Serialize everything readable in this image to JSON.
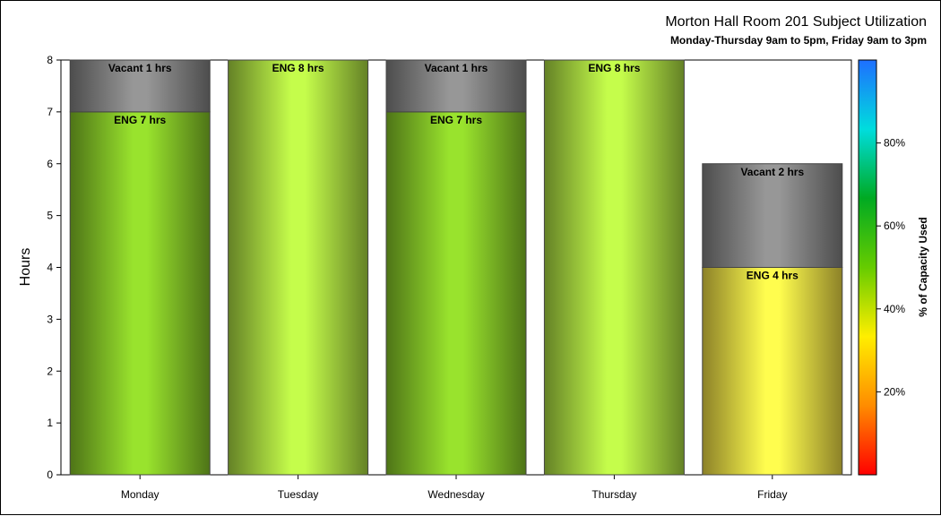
{
  "chart_data": {
    "type": "bar",
    "stacked": true,
    "title": "Morton Hall Room 201 Subject Utilization",
    "subtitle": "Monday-Thursday 9am to 5pm, Friday 9am to 3pm",
    "ylabel": "Hours",
    "ylim": [
      0,
      8
    ],
    "yticks": [
      "0",
      "1",
      "2",
      "3",
      "4",
      "5",
      "6",
      "7",
      "8"
    ],
    "categories": [
      "Monday",
      "Tuesday",
      "Wednesday",
      "Thursday",
      "Friday"
    ],
    "bars": [
      {
        "category": "Monday",
        "segments": [
          {
            "name": "ENG",
            "hours": 7,
            "label": "ENG 7 hrs",
            "capacity_pct": 87.5,
            "color": "#8ed22a"
          },
          {
            "name": "Vacant",
            "hours": 1,
            "label": "Vacant 1 hrs",
            "color": "#8c8c8c"
          }
        ]
      },
      {
        "category": "Tuesday",
        "segments": [
          {
            "name": "ENG",
            "hours": 8,
            "label": "ENG 8 hrs",
            "capacity_pct": 100,
            "color": "#b6ea45"
          }
        ]
      },
      {
        "category": "Wednesday",
        "segments": [
          {
            "name": "ENG",
            "hours": 7,
            "label": "ENG 7 hrs",
            "capacity_pct": 87.5,
            "color": "#8ed22a"
          },
          {
            "name": "Vacant",
            "hours": 1,
            "label": "Vacant 1 hrs",
            "color": "#8c8c8c"
          }
        ]
      },
      {
        "category": "Thursday",
        "segments": [
          {
            "name": "ENG",
            "hours": 8,
            "label": "ENG 8 hrs",
            "capacity_pct": 100,
            "color": "#b6ea45"
          }
        ]
      },
      {
        "category": "Friday",
        "segments": [
          {
            "name": "ENG",
            "hours": 4,
            "label": "ENG 4 hrs",
            "capacity_pct": 66.7,
            "color": "#ffea48"
          },
          {
            "name": "Vacant",
            "hours": 2,
            "label": "Vacant 2 hrs",
            "color": "#8c8c8c"
          }
        ]
      }
    ],
    "colorbar": {
      "label": "% of Capacity Used",
      "ticks": [
        "20%",
        "40%",
        "60%",
        "80%"
      ],
      "tick_values": [
        20,
        40,
        60,
        80
      ],
      "range": [
        0,
        100
      ],
      "colors": [
        "#ff0000",
        "#ff8c00",
        "#ffee00",
        "#66cc00",
        "#00aa22",
        "#00dddd",
        "#1e6fff"
      ]
    }
  }
}
